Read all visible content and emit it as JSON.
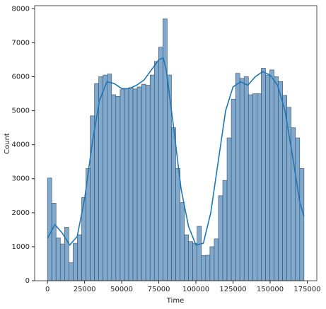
{
  "chart_data": {
    "type": "histogram",
    "xlabel": "Time",
    "ylabel": "Count",
    "bins": [
      0,
      2880,
      5760,
      8640,
      11520,
      14400,
      17280,
      20160,
      23040,
      25920,
      28800,
      31680,
      34560,
      37440,
      40320,
      43200,
      46080,
      48960,
      51840,
      54720,
      57600,
      60480,
      63360,
      66240,
      69120,
      72000,
      74880,
      77760,
      80640,
      83520,
      86400,
      89280,
      92160,
      95040,
      97920,
      100800,
      103680,
      106560,
      109440,
      112320,
      115200,
      118080,
      120960,
      123840,
      126720,
      129600,
      132480,
      135360,
      138240,
      141120,
      144000,
      146880,
      149760,
      152640,
      155520,
      158400,
      161280,
      164160,
      167040,
      169920,
      172800
    ],
    "values": [
      3020,
      2280,
      1260,
      1080,
      1570,
      530,
      1100,
      1350,
      2450,
      3300,
      4850,
      5800,
      6000,
      6050,
      6080,
      5470,
      5420,
      5620,
      5650,
      5680,
      5640,
      5700,
      5780,
      5750,
      6050,
      6450,
      6870,
      7700,
      6050,
      4500,
      3300,
      2300,
      1350,
      1150,
      1100,
      1600,
      740,
      750,
      1000,
      1230,
      2500,
      2950,
      4200,
      5340,
      6100,
      5950,
      6000,
      5470,
      5500,
      5500,
      6250,
      6050,
      6200,
      6000,
      5860,
      5450,
      5100,
      4500,
      4200,
      3300
    ],
    "color": "#7fa9cf",
    "edgecolor": "#3a4a5a",
    "kde": {
      "color": "#1f77b4",
      "x": [
        0,
        5000,
        10000,
        15000,
        20000,
        25000,
        30000,
        35000,
        40000,
        45000,
        50000,
        55000,
        60000,
        65000,
        70000,
        75000,
        78000,
        80000,
        85000,
        90000,
        95000,
        100000,
        105000,
        110000,
        115000,
        120000,
        125000,
        130000,
        135000,
        140000,
        145000,
        150000,
        155000,
        160000,
        165000,
        170000,
        172800
      ],
      "values": [
        1250,
        1650,
        1400,
        1050,
        1300,
        2400,
        4000,
        5300,
        5850,
        5800,
        5650,
        5650,
        5750,
        5900,
        6200,
        6500,
        6550,
        6200,
        4500,
        2700,
        1600,
        1050,
        1100,
        2000,
        3500,
        5000,
        5700,
        5850,
        5750,
        6000,
        6150,
        6050,
        5750,
        5000,
        3700,
        2300,
        1900
      ]
    },
    "xlim": [
      -8640,
      181440
    ],
    "ylim": [
      0,
      8090
    ],
    "xticks": [
      0,
      25000,
      50000,
      75000,
      100000,
      125000,
      150000,
      175000
    ],
    "yticks": [
      0,
      1000,
      2000,
      3000,
      4000,
      5000,
      6000,
      7000,
      8000
    ]
  }
}
